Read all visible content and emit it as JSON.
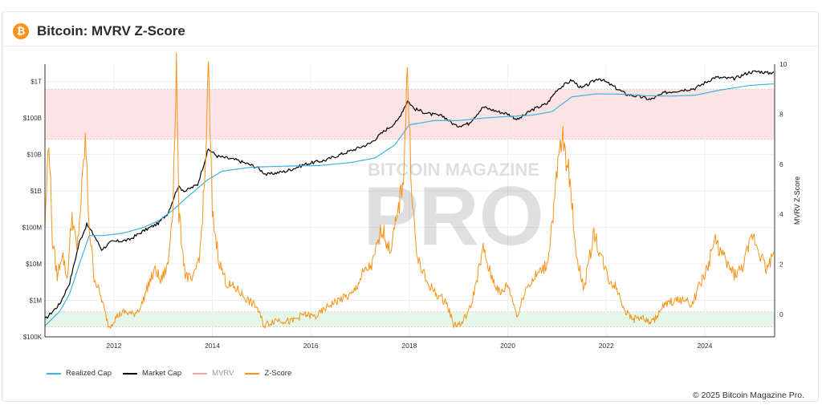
{
  "header": {
    "logo_icon": "bitcoin-icon",
    "logo_glyph": "₿",
    "title": "Bitcoin: MVRV Z-Score"
  },
  "watermark": {
    "line1": "BITCOIN MAGAZINE",
    "line2": "PRO"
  },
  "legend": [
    {
      "label": "Realized Cap",
      "color": "#3db3e6"
    },
    {
      "label": "Market Cap",
      "color": "#000000"
    },
    {
      "label": "MVRV",
      "color": "#f4a3a3"
    },
    {
      "label": "Z-Score",
      "color": "#f7931a"
    }
  ],
  "copyright": "© 2025 Bitcoin Magazine Pro.",
  "chart_data": {
    "type": "line",
    "title": "Bitcoin: MVRV Z-Score",
    "x_range": [
      "2010-08",
      "2025-05"
    ],
    "x_ticks": [
      "2012",
      "2014",
      "2016",
      "2018",
      "2020",
      "2022",
      "2024"
    ],
    "x_tick_years": [
      2012,
      2014,
      2016,
      2018,
      2020,
      2022,
      2024
    ],
    "y_left": {
      "scale": "log",
      "range": [
        100000,
        3000000000000
      ],
      "tick_values": [
        100000,
        1000000,
        10000000,
        100000000,
        1000000000,
        10000000000,
        100000000000,
        1000000000000
      ],
      "tick_labels": [
        "$100K",
        "$1M",
        "$10M",
        "$100M",
        "$1B",
        "$10B",
        "$100B",
        "$1T"
      ]
    },
    "y_right": {
      "label": "MVRV Z-Score",
      "range": [
        -0.9,
        10
      ],
      "tick_values": [
        0,
        2,
        4,
        6,
        8,
        10
      ],
      "tick_labels": [
        "0",
        "2",
        "4",
        "6",
        "8",
        "10"
      ]
    },
    "bands": [
      {
        "zone": "high",
        "from": 7.0,
        "to": 9.0,
        "color": "#fde3e3"
      },
      {
        "zone": "low",
        "from": -0.5,
        "to": 0.1,
        "color": "#e4f7e9"
      }
    ],
    "grid": true,
    "series": [
      {
        "name": "Market Cap",
        "axis": "left",
        "color": "#000000",
        "points": [
          [
            2010.6,
            300000
          ],
          [
            2010.9,
            800000
          ],
          [
            2011.1,
            3000000
          ],
          [
            2011.3,
            40000000
          ],
          [
            2011.45,
            120000000
          ],
          [
            2011.6,
            60000000
          ],
          [
            2011.75,
            25000000
          ],
          [
            2011.95,
            40000000
          ],
          [
            2012.3,
            45000000
          ],
          [
            2012.6,
            80000000
          ],
          [
            2012.9,
            130000000
          ],
          [
            2013.1,
            250000000
          ],
          [
            2013.3,
            1300000000
          ],
          [
            2013.45,
            1000000000
          ],
          [
            2013.7,
            1500000000
          ],
          [
            2013.92,
            14000000000
          ],
          [
            2014.1,
            9000000000
          ],
          [
            2014.5,
            7000000000
          ],
          [
            2014.9,
            4500000000
          ],
          [
            2015.1,
            2800000000
          ],
          [
            2015.5,
            3500000000
          ],
          [
            2015.9,
            5500000000
          ],
          [
            2016.3,
            7000000000
          ],
          [
            2016.6,
            10000000000
          ],
          [
            2016.9,
            14000000000
          ],
          [
            2017.2,
            20000000000
          ],
          [
            2017.5,
            45000000000
          ],
          [
            2017.75,
            80000000000
          ],
          [
            2017.97,
            300000000000
          ],
          [
            2018.1,
            180000000000
          ],
          [
            2018.4,
            130000000000
          ],
          [
            2018.7,
            110000000000
          ],
          [
            2018.95,
            60000000000
          ],
          [
            2019.2,
            70000000000
          ],
          [
            2019.5,
            200000000000
          ],
          [
            2019.8,
            150000000000
          ],
          [
            2020.0,
            130000000000
          ],
          [
            2020.2,
            90000000000
          ],
          [
            2020.5,
            170000000000
          ],
          [
            2020.8,
            250000000000
          ],
          [
            2021.0,
            600000000000
          ],
          [
            2021.3,
            1100000000000
          ],
          [
            2021.5,
            650000000000
          ],
          [
            2021.85,
            1250000000000
          ],
          [
            2022.1,
            800000000000
          ],
          [
            2022.4,
            450000000000
          ],
          [
            2022.7,
            380000000000
          ],
          [
            2022.9,
            320000000000
          ],
          [
            2023.2,
            500000000000
          ],
          [
            2023.5,
            580000000000
          ],
          [
            2023.8,
            650000000000
          ],
          [
            2024.2,
            1300000000000
          ],
          [
            2024.6,
            1200000000000
          ],
          [
            2024.9,
            1800000000000
          ],
          [
            2025.1,
            1900000000000
          ],
          [
            2025.3,
            1700000000000
          ],
          [
            2025.4,
            1850000000000
          ]
        ]
      },
      {
        "name": "Realized Cap",
        "axis": "left",
        "color": "#3db3e6",
        "points": [
          [
            2010.6,
            200000
          ],
          [
            2010.9,
            500000
          ],
          [
            2011.1,
            1500000
          ],
          [
            2011.3,
            10000000
          ],
          [
            2011.5,
            60000000
          ],
          [
            2011.8,
            60000000
          ],
          [
            2012.2,
            70000000
          ],
          [
            2012.6,
            100000000
          ],
          [
            2012.9,
            150000000
          ],
          [
            2013.2,
            300000000
          ],
          [
            2013.5,
            700000000
          ],
          [
            2013.9,
            2000000000
          ],
          [
            2014.2,
            3500000000
          ],
          [
            2014.8,
            4500000000
          ],
          [
            2015.5,
            4800000000
          ],
          [
            2016.2,
            5000000000
          ],
          [
            2016.8,
            6000000000
          ],
          [
            2017.3,
            8000000000
          ],
          [
            2017.7,
            18000000000
          ],
          [
            2018.0,
            65000000000
          ],
          [
            2018.5,
            85000000000
          ],
          [
            2019.0,
            85000000000
          ],
          [
            2019.5,
            100000000000
          ],
          [
            2020.0,
            110000000000
          ],
          [
            2020.5,
            120000000000
          ],
          [
            2020.9,
            150000000000
          ],
          [
            2021.3,
            380000000000
          ],
          [
            2021.8,
            460000000000
          ],
          [
            2022.3,
            450000000000
          ],
          [
            2022.8,
            410000000000
          ],
          [
            2023.3,
            400000000000
          ],
          [
            2023.8,
            420000000000
          ],
          [
            2024.3,
            580000000000
          ],
          [
            2024.9,
            780000000000
          ],
          [
            2025.4,
            870000000000
          ]
        ]
      },
      {
        "name": "Z-Score",
        "axis": "right",
        "color": "#f7931a",
        "points": [
          [
            2010.6,
            3.5
          ],
          [
            2010.68,
            7.2
          ],
          [
            2010.75,
            3.0
          ],
          [
            2010.85,
            1.5
          ],
          [
            2010.95,
            2.5
          ],
          [
            2011.05,
            1.4
          ],
          [
            2011.15,
            4.0
          ],
          [
            2011.25,
            2.5
          ],
          [
            2011.35,
            5.0
          ],
          [
            2011.42,
            7.0
          ],
          [
            2011.5,
            3.5
          ],
          [
            2011.6,
            1.5
          ],
          [
            2011.75,
            0.6
          ],
          [
            2011.9,
            -0.5
          ],
          [
            2012.05,
            -0.1
          ],
          [
            2012.2,
            0.1
          ],
          [
            2012.4,
            0.0
          ],
          [
            2012.55,
            0.3
          ],
          [
            2012.7,
            1.2
          ],
          [
            2012.85,
            1.8
          ],
          [
            2012.95,
            1.3
          ],
          [
            2013.1,
            2.0
          ],
          [
            2013.2,
            4.5
          ],
          [
            2013.27,
            10.0
          ],
          [
            2013.32,
            4.0
          ],
          [
            2013.45,
            1.6
          ],
          [
            2013.6,
            1.3
          ],
          [
            2013.75,
            2.5
          ],
          [
            2013.85,
            5.5
          ],
          [
            2013.92,
            9.8
          ],
          [
            2014.0,
            4.0
          ],
          [
            2014.15,
            2.0
          ],
          [
            2014.3,
            1.2
          ],
          [
            2014.5,
            1.0
          ],
          [
            2014.7,
            0.6
          ],
          [
            2014.9,
            0.3
          ],
          [
            2015.05,
            -0.45
          ],
          [
            2015.3,
            -0.2
          ],
          [
            2015.6,
            -0.3
          ],
          [
            2015.85,
            0.0
          ],
          [
            2016.1,
            -0.1
          ],
          [
            2016.4,
            0.4
          ],
          [
            2016.6,
            0.6
          ],
          [
            2016.85,
            0.8
          ],
          [
            2017.05,
            1.6
          ],
          [
            2017.25,
            2.0
          ],
          [
            2017.45,
            3.5
          ],
          [
            2017.6,
            2.5
          ],
          [
            2017.75,
            3.8
          ],
          [
            2017.88,
            5.5
          ],
          [
            2017.96,
            9.8
          ],
          [
            2018.05,
            5.0
          ],
          [
            2018.15,
            2.3
          ],
          [
            2018.35,
            1.3
          ],
          [
            2018.55,
            0.8
          ],
          [
            2018.75,
            0.5
          ],
          [
            2018.9,
            -0.4
          ],
          [
            2019.05,
            -0.4
          ],
          [
            2019.25,
            0.3
          ],
          [
            2019.5,
            2.6
          ],
          [
            2019.65,
            1.6
          ],
          [
            2019.85,
            0.8
          ],
          [
            2020.0,
            1.2
          ],
          [
            2020.2,
            -0.1
          ],
          [
            2020.35,
            1.0
          ],
          [
            2020.6,
            1.6
          ],
          [
            2020.8,
            2.0
          ],
          [
            2020.92,
            4.0
          ],
          [
            2021.05,
            6.5
          ],
          [
            2021.12,
            7.0
          ],
          [
            2021.25,
            5.5
          ],
          [
            2021.4,
            2.3
          ],
          [
            2021.55,
            1.0
          ],
          [
            2021.75,
            3.3
          ],
          [
            2021.85,
            2.6
          ],
          [
            2022.05,
            1.4
          ],
          [
            2022.2,
            1.1
          ],
          [
            2022.4,
            0.1
          ],
          [
            2022.55,
            -0.2
          ],
          [
            2022.7,
            -0.1
          ],
          [
            2022.85,
            -0.3
          ],
          [
            2022.95,
            -0.3
          ],
          [
            2023.15,
            0.3
          ],
          [
            2023.3,
            0.5
          ],
          [
            2023.55,
            0.6
          ],
          [
            2023.75,
            0.4
          ],
          [
            2023.9,
            1.2
          ],
          [
            2024.05,
            1.8
          ],
          [
            2024.2,
            3.0
          ],
          [
            2024.3,
            2.6
          ],
          [
            2024.45,
            2.0
          ],
          [
            2024.6,
            1.6
          ],
          [
            2024.75,
            1.8
          ],
          [
            2024.9,
            2.7
          ],
          [
            2024.97,
            3.2
          ],
          [
            2025.1,
            2.6
          ],
          [
            2025.25,
            1.8
          ],
          [
            2025.35,
            2.2
          ],
          [
            2025.4,
            2.5
          ]
        ]
      }
    ]
  }
}
